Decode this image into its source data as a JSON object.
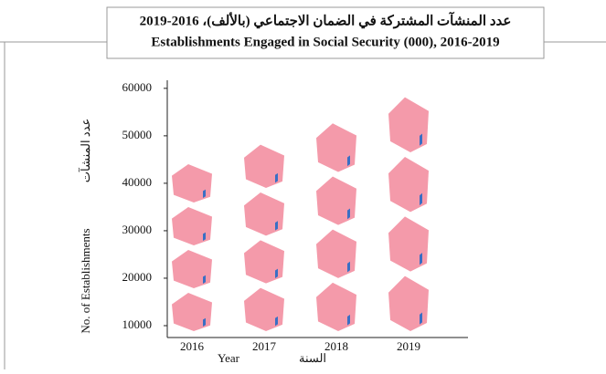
{
  "chart_data": {
    "type": "pictograph",
    "title": "عدد المنشآت المشتركة في الضمان الاجتماعي (بالألف)، 2016-2019",
    "subtitle": "Establishments Engaged in Social Security (000), 2016-2019",
    "y_label": "No. of Establishments",
    "y_label_ar": "عدد المنشآت",
    "x_label": "Year",
    "x_label_ar": "السنة",
    "categories": [
      "2016",
      "2017",
      "2018",
      "2019"
    ],
    "values": [
      44400,
      48500,
      53000,
      58500
    ],
    "color": "#f49aaa",
    "ylim": [
      7500,
      61700
    ],
    "yticks": [
      10000,
      20000,
      30000,
      40000,
      50000,
      60000
    ]
  }
}
